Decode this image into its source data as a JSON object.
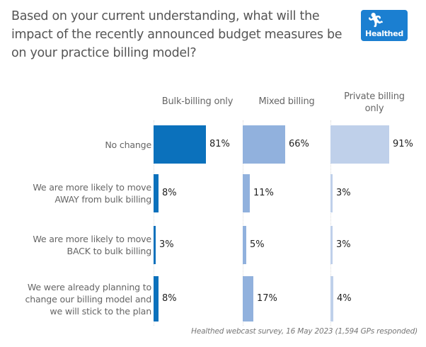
{
  "title": "Based on your current understanding, what will the impact of the recently announced budget measures be on your practice billing model?",
  "logo": {
    "text": "Healthed",
    "icon": "runner-icon",
    "color": "#1b7fd1"
  },
  "footnote": "Healthed webcast survey, 16 May 2023 (1,594 GPs responded)",
  "chart_data": {
    "type": "bar",
    "orientation": "horizontal",
    "title": "Based on your current understanding, what will the impact of the recently announced budget measures be on your practice billing model?",
    "categories": [
      "No change",
      "We are more likely to move AWAY from bulk billing",
      "We are more likely to move BACK to bulk billing",
      "We were already planning to change our billing model and we will stick to the plan"
    ],
    "category_lines": [
      [
        "No change"
      ],
      [
        "We are more likely to move",
        "AWAY from bulk billing"
      ],
      [
        "We are more likely to move",
        "BACK to bulk billing"
      ],
      [
        "We were already planning to",
        "change our billing model and",
        "we will stick to the plan"
      ]
    ],
    "series": [
      {
        "name": "Bulk-billing only",
        "header_lines": [
          "Bulk-billing only"
        ],
        "color": "#0b71bc",
        "values": [
          81,
          8,
          3,
          8
        ]
      },
      {
        "name": "Mixed billing",
        "header_lines": [
          "Mixed billing"
        ],
        "color": "#91b1dd",
        "values": [
          66,
          11,
          5,
          17
        ]
      },
      {
        "name": "Private billing only",
        "header_lines": [
          "Private billing",
          "only"
        ],
        "color": "#bfd0ea",
        "values": [
          91,
          3,
          3,
          4
        ]
      }
    ],
    "value_suffix": "%",
    "xlim": [
      0,
      100
    ],
    "grid": false,
    "legend": "column-headers-top",
    "source": "Healthed webcast survey, 16 May 2023 (1,594 GPs responded)"
  }
}
